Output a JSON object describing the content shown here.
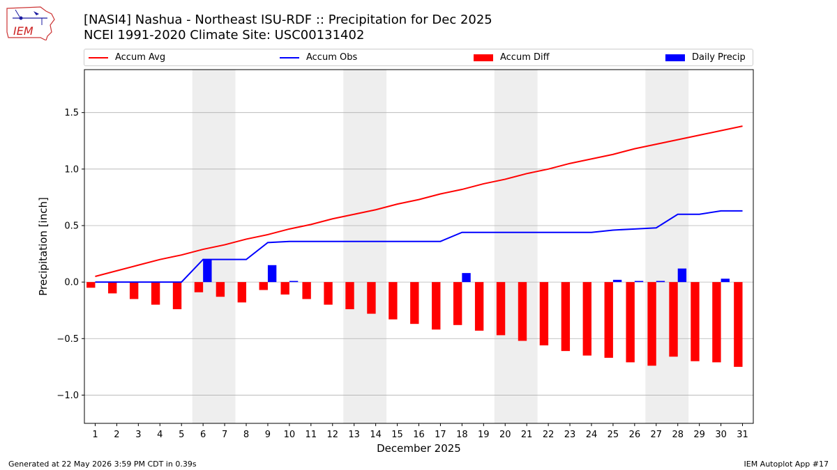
{
  "logo": {
    "text": "IEM"
  },
  "header": {
    "title": "[NASI4] Nashua - Northeast ISU-RDF :: Precipitation for Dec 2025",
    "subtitle": "NCEI 1991-2020 Climate Site: USC00131402"
  },
  "footer": {
    "generated": "Generated at 22 May 2026 3:59 PM CDT in 0.39s",
    "app": "IEM Autoplot App #17"
  },
  "colors": {
    "avg": "#ff0000",
    "obs": "#0000ff",
    "diff": "#ff0000",
    "daily": "#0000ff",
    "weekend": "#eeeeee",
    "grid": "#b0b0b0"
  },
  "chart_data": {
    "type": "bar",
    "xlabel": "December 2025",
    "ylabel": "Precipitation [inch]",
    "xlim": [
      0.5,
      31.5
    ],
    "ylim": [
      -1.25,
      1.88
    ],
    "yticks": [
      -1.0,
      -0.5,
      0.0,
      0.5,
      1.0,
      1.5
    ],
    "ytick_labels": [
      "−1.0",
      "−0.5",
      "0.0",
      "0.5",
      "1.0",
      "1.5"
    ],
    "legend_position": "top",
    "grid": "horizontal",
    "weekend_shading": [
      [
        5.5,
        7.5
      ],
      [
        12.5,
        14.5
      ],
      [
        19.5,
        21.5
      ],
      [
        26.5,
        28.5
      ]
    ],
    "days": [
      1,
      2,
      3,
      4,
      5,
      6,
      7,
      8,
      9,
      10,
      11,
      12,
      13,
      14,
      15,
      16,
      17,
      18,
      19,
      20,
      21,
      22,
      23,
      24,
      25,
      26,
      27,
      28,
      29,
      30,
      31
    ],
    "series": [
      {
        "name": "Accum Avg",
        "kind": "line",
        "values": [
          0.05,
          0.1,
          0.15,
          0.2,
          0.24,
          0.29,
          0.33,
          0.38,
          0.42,
          0.47,
          0.51,
          0.56,
          0.6,
          0.64,
          0.69,
          0.73,
          0.78,
          0.82,
          0.87,
          0.91,
          0.96,
          1.0,
          1.05,
          1.09,
          1.13,
          1.18,
          1.22,
          1.26,
          1.3,
          1.34,
          1.38
        ]
      },
      {
        "name": "Accum Obs",
        "kind": "line",
        "values": [
          0.0,
          0.0,
          0.0,
          0.0,
          0.0,
          0.2,
          0.2,
          0.2,
          0.35,
          0.36,
          0.36,
          0.36,
          0.36,
          0.36,
          0.36,
          0.36,
          0.36,
          0.44,
          0.44,
          0.44,
          0.44,
          0.44,
          0.44,
          0.44,
          0.46,
          0.47,
          0.48,
          0.6,
          0.6,
          0.63,
          0.63
        ]
      },
      {
        "name": "Accum Diff",
        "kind": "bar",
        "values": [
          -0.05,
          -0.1,
          -0.15,
          -0.2,
          -0.24,
          -0.09,
          -0.13,
          -0.18,
          -0.07,
          -0.11,
          -0.15,
          -0.2,
          -0.24,
          -0.28,
          -0.33,
          -0.37,
          -0.42,
          -0.38,
          -0.43,
          -0.47,
          -0.52,
          -0.56,
          -0.61,
          -0.65,
          -0.67,
          -0.71,
          -0.74,
          -0.66,
          -0.7,
          -0.71,
          -0.75
        ]
      },
      {
        "name": "Daily Precip",
        "kind": "bar",
        "values": [
          0,
          0,
          0,
          0,
          0,
          0.2,
          0,
          0,
          0.15,
          0.01,
          0,
          0,
          0,
          0,
          0,
          0,
          0,
          0.08,
          0,
          0,
          0,
          0,
          0,
          0,
          0.02,
          0.01,
          0.01,
          0.12,
          0,
          0.03,
          0
        ]
      }
    ]
  }
}
